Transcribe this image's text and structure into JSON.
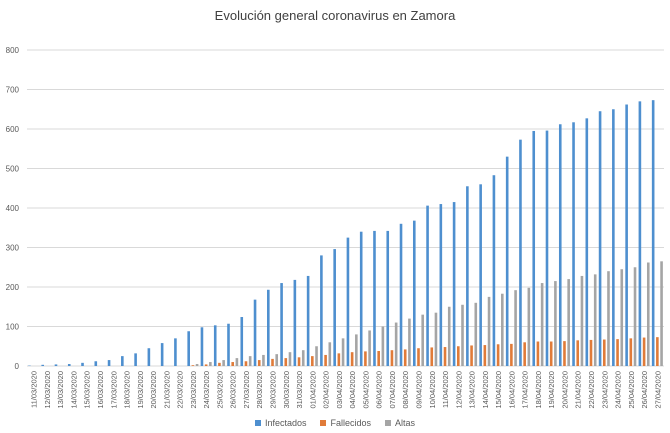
{
  "chart_data": {
    "type": "bar",
    "title": "Evolución general coronavirus en Zamora",
    "xlabel": "",
    "ylabel": "",
    "ylim": [
      0,
      800
    ],
    "yticks": [
      0,
      100,
      200,
      300,
      400,
      500,
      600,
      700,
      800
    ],
    "grid": true,
    "legend_position": "bottom",
    "categories": [
      "11/03/2020",
      "12/03/2020",
      "13/03/2020",
      "14/03/2020",
      "15/03/2020",
      "16/03/2020",
      "17/03/2020",
      "18/03/2020",
      "19/03/2020",
      "20/03/2020",
      "21/03/2020",
      "22/03/2020",
      "23/03/2020",
      "24/03/2020",
      "25/03/2020",
      "26/03/2020",
      "27/03/2020",
      "28/03/2020",
      "29/03/2020",
      "30/03/2020",
      "31/03/2020",
      "01/04/2020",
      "02/04/2020",
      "03/04/2020",
      "04/04/2020",
      "05/04/2020",
      "06/04/2020",
      "07/04/2020",
      "08/04/2020",
      "09/04/2020",
      "10/04/2020",
      "11/04/2020",
      "12/04/2020",
      "13/04/2020",
      "14/04/2020",
      "15/04/2020",
      "16/04/2020",
      "17/04/2020",
      "18/04/2020",
      "19/04/2020",
      "20/04/2020",
      "21/04/2020",
      "22/04/2020",
      "23/04/2020",
      "24/04/2020",
      "25/04/2020",
      "26/04/2020",
      "27/04/2020"
    ],
    "series": [
      {
        "name": "Infectados",
        "color": "#4e8fcf",
        "values": [
          1,
          3,
          4,
          5,
          8,
          12,
          15,
          25,
          32,
          45,
          58,
          70,
          88,
          98,
          103,
          107,
          124,
          168,
          193,
          210,
          218,
          228,
          280,
          296,
          325,
          340,
          342,
          342,
          360,
          368,
          406,
          410,
          415,
          455,
          460,
          483,
          530,
          573,
          595,
          596,
          612,
          617,
          627,
          645,
          650,
          662,
          670,
          673
        ]
      },
      {
        "name": "Fallecidos",
        "color": "#e07b39",
        "values": [
          0,
          0,
          0,
          0,
          0,
          0,
          0,
          0,
          0,
          0,
          0,
          0,
          2,
          4,
          8,
          10,
          12,
          15,
          18,
          20,
          22,
          25,
          28,
          32,
          35,
          37,
          38,
          40,
          42,
          45,
          47,
          48,
          50,
          52,
          53,
          55,
          56,
          60,
          62,
          62,
          63,
          65,
          66,
          67,
          68,
          70,
          72,
          73
        ]
      },
      {
        "name": "Altas",
        "color": "#a5a5a5",
        "values": [
          0,
          0,
          0,
          0,
          0,
          0,
          0,
          0,
          0,
          0,
          0,
          0,
          5,
          10,
          15,
          20,
          25,
          28,
          30,
          35,
          40,
          50,
          60,
          70,
          80,
          90,
          100,
          110,
          120,
          130,
          135,
          150,
          155,
          160,
          175,
          183,
          192,
          198,
          210,
          215,
          220,
          228,
          232,
          240,
          245,
          250,
          262,
          265
        ]
      }
    ]
  }
}
